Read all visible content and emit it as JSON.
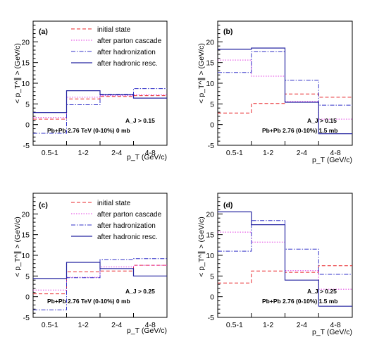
{
  "chart_data": [
    {
      "type": "line",
      "panel_label": "(a)",
      "xlabel": "p_T (GeV/c)",
      "ylabel": "< p_T^∥ > (GeV/c)",
      "categories": [
        "0.5-1",
        "1-2",
        "2-4",
        "4-8"
      ],
      "ylim": [
        -5,
        25
      ],
      "yticks": [
        -5,
        0,
        5,
        10,
        15,
        20
      ],
      "legend": "top-right",
      "annotation_cut": "A_J > 0.15",
      "annotation_system": "Pb+Pb 2.76 TeV (0-10%) 0 mb",
      "series": [
        {
          "name": "initial state",
          "color": "#e8262a",
          "values": [
            1.3,
            6.2,
            6.8,
            7.0
          ]
        },
        {
          "name": "after parton cascade",
          "color": "#e23be2",
          "values": [
            1.7,
            6.6,
            7.0,
            7.2
          ]
        },
        {
          "name": "after hadronization",
          "color": "#3232c8",
          "values": [
            -2.1,
            4.8,
            7.3,
            8.7
          ]
        },
        {
          "name": "after hadronic resc.",
          "color": "#2424a0",
          "values": [
            2.9,
            8.2,
            7.2,
            6.4
          ]
        }
      ]
    },
    {
      "type": "line",
      "panel_label": "(b)",
      "xlabel": "p_T (GeV/c)",
      "ylabel": "< p_T^∥ > (GeV/c)",
      "categories": [
        "0.5-1",
        "1-2",
        "2-4",
        "4-8"
      ],
      "ylim": [
        -5,
        25
      ],
      "yticks": [
        -5,
        0,
        5,
        10,
        15,
        20
      ],
      "legend": "none",
      "annotation_cut": "A_J > 0.15",
      "annotation_system": "Pb+Pb 2.76 (0-10%) 1.5 mb",
      "series": [
        {
          "name": "initial state",
          "color": "#e8262a",
          "values": [
            2.8,
            5.1,
            7.4,
            6.6
          ]
        },
        {
          "name": "after parton cascade",
          "color": "#e23be2",
          "values": [
            15.6,
            11.7,
            5.6,
            1.3
          ]
        },
        {
          "name": "after hadronization",
          "color": "#3232c8",
          "values": [
            12.6,
            17.6,
            10.7,
            4.7
          ]
        },
        {
          "name": "after hadronic resc.",
          "color": "#2424a0",
          "values": [
            18.2,
            18.5,
            5.4,
            -2.2
          ]
        }
      ]
    },
    {
      "type": "line",
      "panel_label": "(c)",
      "xlabel": "p_T (GeV/c)",
      "ylabel": "< p_T^∥ > (GeV/c)",
      "categories": [
        "0.5-1",
        "1-2",
        "2-4",
        "4-8"
      ],
      "ylim": [
        -5,
        25
      ],
      "yticks": [
        -5,
        0,
        5,
        10,
        15,
        20
      ],
      "legend": "top-right",
      "annotation_cut": "A_J > 0.25",
      "annotation_system": "Pb+Pb 2.76 TeV (0-10%) 0 mb",
      "series": [
        {
          "name": "initial state",
          "color": "#e8262a",
          "values": [
            0.7,
            6.0,
            6.2,
            7.6
          ]
        },
        {
          "name": "after parton cascade",
          "color": "#e23be2",
          "values": [
            1.6,
            4.7,
            7.2,
            7.6
          ]
        },
        {
          "name": "after hadronization",
          "color": "#3232c8",
          "values": [
            -3.2,
            4.6,
            9.0,
            9.2
          ]
        },
        {
          "name": "after hadronic resc.",
          "color": "#2424a0",
          "values": [
            4.4,
            8.3,
            6.8,
            5.0
          ]
        }
      ]
    },
    {
      "type": "line",
      "panel_label": "(d)",
      "xlabel": "p_T (GeV/c)",
      "ylabel": "< p_T^∥ > (GeV/c)",
      "categories": [
        "0.5-1",
        "1-2",
        "2-4",
        "4-8"
      ],
      "ylim": [
        -5,
        25
      ],
      "yticks": [
        -5,
        0,
        5,
        10,
        15,
        20
      ],
      "legend": "none",
      "annotation_cut": "A_J > 0.25",
      "annotation_system": "Pb+Pb 2.76 (0-10%) 1.5 mb",
      "series": [
        {
          "name": "initial state",
          "color": "#e8262a",
          "values": [
            3.3,
            6.2,
            5.9,
            7.5
          ]
        },
        {
          "name": "after parton cascade",
          "color": "#e23be2",
          "values": [
            15.6,
            13.2,
            6.3,
            1.8
          ]
        },
        {
          "name": "after hadronization",
          "color": "#3232c8",
          "values": [
            11.0,
            18.4,
            11.5,
            5.4
          ]
        },
        {
          "name": "after hadronic resc.",
          "color": "#2424a0",
          "values": [
            20.5,
            17.4,
            4.0,
            -2.3
          ]
        }
      ]
    }
  ]
}
